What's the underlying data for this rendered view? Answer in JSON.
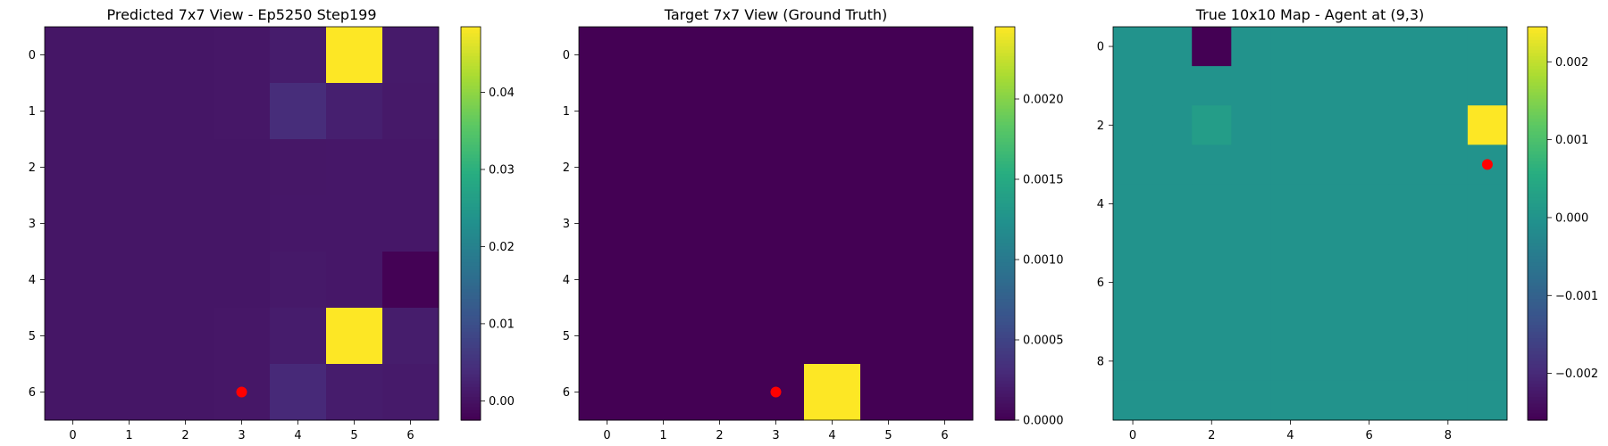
{
  "chart_data": [
    {
      "type": "heatmap",
      "title": "Predicted 7x7 View - Ep5250 Step199",
      "rows": 7,
      "cols": 7,
      "xticks": [
        0,
        1,
        2,
        3,
        4,
        5,
        6
      ],
      "yticks": [
        0,
        1,
        2,
        3,
        4,
        5,
        6
      ],
      "values": [
        [
          0.0006,
          0.0006,
          0.0006,
          0.0007,
          0.0015,
          0.0485,
          0.0012
        ],
        [
          0.0006,
          0.0006,
          0.0006,
          0.0007,
          0.004,
          0.002,
          0.001
        ],
        [
          0.0006,
          0.0006,
          0.0006,
          0.0006,
          0.0007,
          0.0008,
          0.0008
        ],
        [
          0.0006,
          0.0006,
          0.0006,
          0.0006,
          0.0008,
          0.0008,
          0.0008
        ],
        [
          0.0006,
          0.0006,
          0.0006,
          0.0006,
          0.001,
          0.0008,
          -0.0024
        ],
        [
          0.0006,
          0.0006,
          0.0006,
          0.0007,
          0.0015,
          0.0485,
          0.0016
        ],
        [
          0.0006,
          0.0006,
          0.0006,
          0.0007,
          0.0035,
          0.0015,
          0.0012
        ]
      ],
      "vmin": -0.0025,
      "vmax": 0.0485,
      "colorbar_ticks": [
        "0.00",
        "0.01",
        "0.02",
        "0.03",
        "0.04"
      ],
      "colorbar_tick_values": [
        0.0,
        0.01,
        0.02,
        0.03,
        0.04
      ],
      "marker": {
        "x": 3,
        "y": 6,
        "color": "#ff0000"
      },
      "colormap": "viridis"
    },
    {
      "type": "heatmap",
      "title": "Target 7x7 View (Ground Truth)",
      "rows": 7,
      "cols": 7,
      "xticks": [
        0,
        1,
        2,
        3,
        4,
        5,
        6
      ],
      "yticks": [
        0,
        1,
        2,
        3,
        4,
        5,
        6
      ],
      "values": [
        [
          0,
          0,
          0,
          0,
          0,
          0,
          0
        ],
        [
          0,
          0,
          0,
          0,
          0,
          0,
          0
        ],
        [
          0,
          0,
          0,
          0,
          0,
          0,
          0
        ],
        [
          0,
          0,
          0,
          0,
          0,
          0,
          0
        ],
        [
          0,
          0,
          0,
          0,
          0,
          0,
          0
        ],
        [
          0,
          0,
          0,
          0,
          0,
          0,
          0
        ],
        [
          0,
          0,
          0,
          0,
          0.00245,
          0,
          0
        ]
      ],
      "vmin": 0.0,
      "vmax": 0.00245,
      "colorbar_ticks": [
        "0.0000",
        "0.0005",
        "0.0010",
        "0.0015",
        "0.0020"
      ],
      "colorbar_tick_values": [
        0.0,
        0.0005,
        0.001,
        0.0015,
        0.002
      ],
      "marker": {
        "x": 3,
        "y": 6,
        "color": "#ff0000"
      },
      "colormap": "viridis"
    },
    {
      "type": "heatmap",
      "title": "True 10x10 Map - Agent at (9,3)",
      "rows": 10,
      "cols": 10,
      "xticks": [
        0,
        2,
        4,
        6,
        8
      ],
      "yticks": [
        0,
        2,
        4,
        6,
        8
      ],
      "values": [
        [
          0,
          0,
          -0.0026,
          0,
          0,
          0,
          0,
          0,
          0,
          0
        ],
        [
          0,
          0,
          0,
          0,
          0,
          0,
          0,
          0,
          0,
          0
        ],
        [
          0,
          0,
          0.0002,
          0,
          0,
          0,
          0,
          0,
          0,
          0.00245
        ],
        [
          0,
          0,
          0,
          0,
          0,
          0,
          0,
          0,
          0,
          0
        ],
        [
          0,
          0,
          0,
          0,
          0,
          0,
          0,
          0,
          0,
          0
        ],
        [
          0,
          0,
          0,
          0,
          0,
          0,
          0,
          0,
          0,
          0
        ],
        [
          0,
          0,
          0,
          0,
          0,
          0,
          0,
          0,
          0,
          0
        ],
        [
          0,
          0,
          0,
          0,
          0,
          0,
          0,
          0,
          0,
          0
        ],
        [
          0,
          0,
          0,
          0,
          0,
          0,
          0,
          0,
          0,
          0
        ],
        [
          0,
          0,
          0,
          0,
          0,
          0,
          0,
          0,
          0,
          0
        ]
      ],
      "vmin": -0.0026,
      "vmax": 0.00245,
      "colorbar_ticks": [
        "−0.002",
        "−0.001",
        "0.000",
        "0.001",
        "0.002"
      ],
      "colorbar_tick_values": [
        -0.002,
        -0.001,
        0.0,
        0.001,
        0.002
      ],
      "marker": {
        "x": 9,
        "y": 3,
        "color": "#ff0000"
      },
      "colormap": "viridis"
    }
  ]
}
